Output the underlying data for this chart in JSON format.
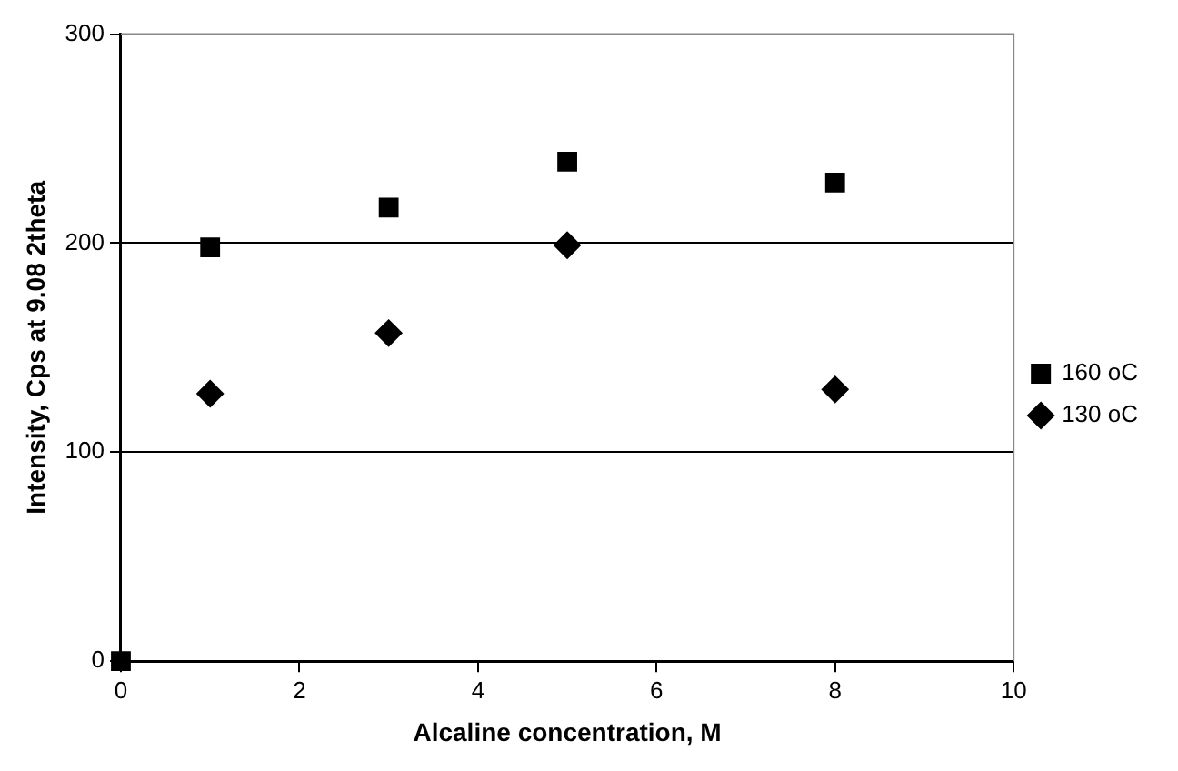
{
  "chart_data": {
    "type": "scatter",
    "xlabel": "Alcaline concentration, M",
    "ylabel": "Intensity, Cps at 9.08 2theta",
    "xlim": [
      0,
      10
    ],
    "xticks": [
      0,
      2,
      4,
      6,
      8,
      10
    ],
    "ylim": [
      0,
      300
    ],
    "yticks": [
      0,
      100,
      200,
      300
    ],
    "grid": "y",
    "legend": "right",
    "series": [
      {
        "name": "160 oC",
        "color": "#000000",
        "marker": "square",
        "x": [
          0,
          1,
          3,
          5,
          8
        ],
        "values": [
          0,
          198,
          217,
          239,
          229
        ]
      },
      {
        "name": "130 oC",
        "color": "#000000",
        "marker": "diamond",
        "x": [
          1,
          3,
          5,
          8
        ],
        "values": [
          128,
          157,
          199,
          130
        ]
      }
    ]
  }
}
